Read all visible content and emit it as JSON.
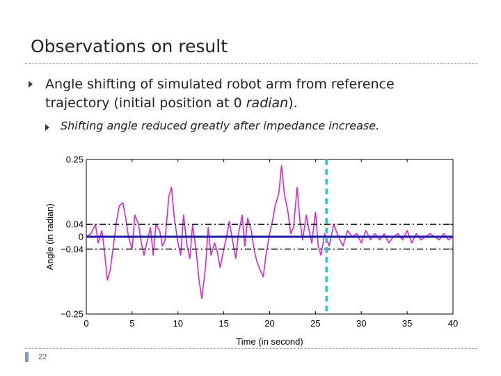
{
  "slide": {
    "title": "Observations on result",
    "bullet1_text_a": "Angle shifting of simulated robot arm from reference trajectory (initial position at 0 ",
    "bullet1_em": "radian",
    "bullet1_text_b": ").",
    "bullet2": "Shifting angle reduced greatly after impedance increase.",
    "page_number": "22",
    "bullet_icon": "triangle-right-icon"
  },
  "chart_data": {
    "type": "line",
    "xlabel": "Time (in second)",
    "ylabel": "Angle (in radian)",
    "xlim": [
      0,
      40
    ],
    "ylim": [
      -0.25,
      0.25
    ],
    "x_ticks": [
      0,
      5,
      10,
      15,
      20,
      25,
      30,
      35,
      40
    ],
    "x_tick_labels": [
      "0",
      "5",
      "10",
      "15",
      "20",
      "25",
      "30",
      "35",
      "40"
    ],
    "y_ticks": [
      0.25,
      0.04,
      0,
      -0.04,
      -0.25
    ],
    "y_tick_labels": [
      "0.25",
      "0.04",
      "0",
      "−0.04",
      "−0.25"
    ],
    "series": [
      {
        "name": "angle shift",
        "color": "#dd22dd",
        "x": [
          0,
          0.5,
          1,
          1.3,
          1.7,
          2,
          2.3,
          2.6,
          3,
          3.3,
          3.6,
          4,
          4.3,
          4.6,
          5,
          5.3,
          5.7,
          6,
          6.3,
          6.6,
          7,
          7.3,
          7.6,
          8,
          8.3,
          8.6,
          9,
          9.3,
          9.6,
          10,
          10.3,
          10.6,
          11,
          11.3,
          11.6,
          12,
          12.3,
          12.6,
          13,
          13.3,
          13.6,
          14,
          14.3,
          14.6,
          15,
          15.3,
          15.6,
          16,
          16.3,
          16.6,
          17,
          17.3,
          17.6,
          18,
          18.3,
          18.6,
          19,
          19.3,
          19.6,
          20,
          20.3,
          20.6,
          21,
          21.3,
          21.6,
          22,
          22.3,
          22.6,
          23,
          23.3,
          23.6,
          24,
          24.3,
          24.6,
          25,
          25.3,
          25.6,
          26,
          26.5,
          27,
          27.5,
          28,
          28.5,
          29,
          29.5,
          30,
          30.5,
          31,
          31.5,
          32,
          32.5,
          33,
          33.5,
          34,
          34.5,
          35,
          35.5,
          36,
          36.5,
          37,
          37.5,
          38,
          38.5,
          39,
          39.5,
          40
        ],
        "values": [
          0.0,
          0.01,
          0.04,
          -0.02,
          0.02,
          -0.05,
          -0.14,
          -0.11,
          -0.02,
          0.05,
          0.1,
          0.11,
          0.06,
          0.0,
          -0.04,
          0.07,
          0.04,
          -0.02,
          -0.06,
          -0.02,
          0.03,
          -0.06,
          0.04,
          0.02,
          -0.03,
          -0.01,
          0.13,
          0.16,
          0.06,
          -0.02,
          -0.06,
          0.07,
          -0.03,
          -0.07,
          0.04,
          -0.05,
          -0.14,
          -0.2,
          -0.1,
          0.03,
          -0.06,
          -0.02,
          -0.05,
          -0.1,
          -0.04,
          0.0,
          0.05,
          -0.02,
          -0.07,
          0.01,
          0.07,
          -0.03,
          0.06,
          0.02,
          -0.04,
          -0.08,
          -0.11,
          -0.13,
          -0.06,
          0.01,
          0.05,
          0.1,
          0.14,
          0.23,
          0.14,
          0.08,
          0.01,
          0.03,
          0.16,
          0.05,
          -0.01,
          0.07,
          0.02,
          -0.02,
          0.08,
          -0.03,
          -0.06,
          0.01,
          -0.03,
          0.04,
          0.0,
          -0.03,
          0.02,
          0.0,
          0.01,
          -0.02,
          0.02,
          -0.01,
          0.01,
          -0.01,
          0.01,
          -0.02,
          0.0,
          0.01,
          -0.01,
          0.02,
          -0.02,
          0.01,
          -0.01,
          0.0,
          0.01,
          0.0,
          -0.01,
          0.01,
          -0.01,
          0.0
        ]
      },
      {
        "name": "reference (0 radian)",
        "color": "#1a1aa8",
        "x": [
          0,
          40
        ],
        "values": [
          0,
          0
        ]
      },
      {
        "name": "upper bound",
        "color": "#000000",
        "x": [
          0,
          40
        ],
        "values": [
          0.04,
          0.04
        ]
      },
      {
        "name": "lower bound",
        "color": "#000000",
        "x": [
          0,
          40
        ],
        "values": [
          -0.04,
          -0.04
        ]
      }
    ],
    "annotations": [
      {
        "name": "impedance increase",
        "x": 26.2,
        "color": "#22c8d8"
      }
    ]
  }
}
